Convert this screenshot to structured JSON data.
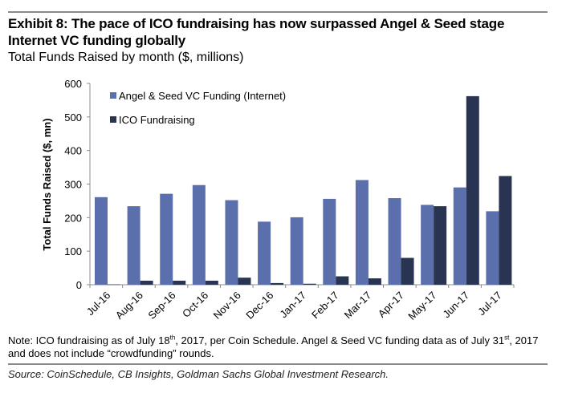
{
  "header": {
    "title": "Exhibit 8: The pace of ICO fundraising has now surpassed Angel & Seed stage Internet VC funding globally",
    "subtitle": "Total Funds Raised by month ($, millions)"
  },
  "footer": {
    "note_part1": "Note: ICO fundraising as of July 18",
    "note_sup1": "th",
    "note_part2": ", 2017, per Coin Schedule. Angel & Seed VC funding data as of July 31",
    "note_sup2": "st",
    "note_part3": ", 2017 and does not include “crowdfunding” rounds.",
    "source": "Source: CoinSchedule, CB Insights, Goldman Sachs Global Investment Research."
  },
  "colors": {
    "angel_seed": "#5b6fad",
    "ico": "#283452",
    "axis": "#8c8c8c"
  },
  "chart_data": {
    "type": "bar",
    "title": "Total Funds Raised by month ($, millions)",
    "xlabel": "",
    "ylabel": "Total Funds Raised ($, mn)",
    "ylim": [
      0,
      600
    ],
    "yticks": [
      0,
      100,
      200,
      300,
      400,
      500,
      600
    ],
    "grid": false,
    "legend_position": "top-left",
    "categories": [
      "Jul-16",
      "Aug-16",
      "Sep-16",
      "Oct-16",
      "Nov-16",
      "Dec-16",
      "Jan-17",
      "Feb-17",
      "Mar-17",
      "Apr-17",
      "May-17",
      "Jun-17",
      "Jul-17"
    ],
    "series": [
      {
        "name": "Angel & Seed VC Funding (Internet)",
        "color": "#5b6fad",
        "values": [
          261,
          234,
          271,
          297,
          252,
          188,
          201,
          256,
          312,
          258,
          238,
          290,
          219
        ]
      },
      {
        "name": "ICO Fundraising",
        "color": "#283452",
        "values": [
          1,
          12,
          12,
          12,
          21,
          5,
          3,
          25,
          19,
          80,
          234,
          562,
          324
        ]
      }
    ]
  }
}
